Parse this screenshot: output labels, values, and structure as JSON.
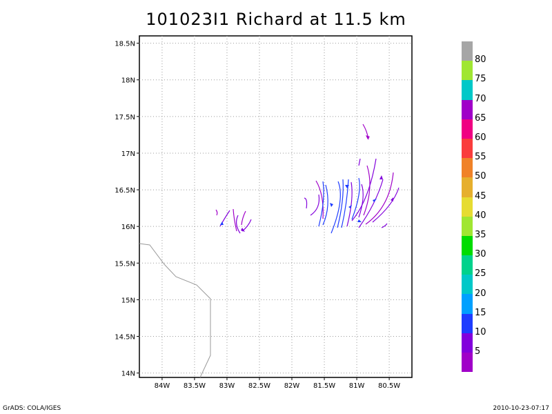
{
  "title": "101023I1 Richard at 11.5 km",
  "footer": {
    "left": "GrADS: COLA/IGES",
    "right": "2010-10-23-07:17"
  },
  "map": {
    "lat_labels": [
      "18.5N",
      "18N",
      "17.5N",
      "17N",
      "16.5N",
      "16N",
      "15.5N",
      "15N",
      "14.5N",
      "14N"
    ],
    "lat_values": [
      18.5,
      18,
      17.5,
      17,
      16.5,
      16,
      15.5,
      15,
      14.5,
      14
    ],
    "lon_labels": [
      "84W",
      "83.5W",
      "83W",
      "82.5W",
      "82W",
      "81.5W",
      "81W",
      "80.5W"
    ],
    "lon_values": [
      -84,
      -83.5,
      -83,
      -82.5,
      -82,
      -81.5,
      -81,
      -80.5
    ],
    "lon_range": [
      -84.35,
      -80.15
    ],
    "lat_range": [
      13.94,
      18.6
    ],
    "grid": true
  },
  "colorbar": {
    "labels": [
      "80",
      "75",
      "70",
      "65",
      "60",
      "55",
      "50",
      "45",
      "40",
      "35",
      "30",
      "25",
      "20",
      "15",
      "10",
      "5"
    ],
    "colors": [
      "#a6a6a6",
      "#a0e632",
      "#00c8c8",
      "#a000c8",
      "#f00082",
      "#fa3c3c",
      "#f08228",
      "#e6af2d",
      "#e6dc32",
      "#a0e632",
      "#00dc00",
      "#00d28c",
      "#00c8c8",
      "#00a0ff",
      "#1e3cff",
      "#8200dc",
      "#a000c8"
    ]
  }
}
